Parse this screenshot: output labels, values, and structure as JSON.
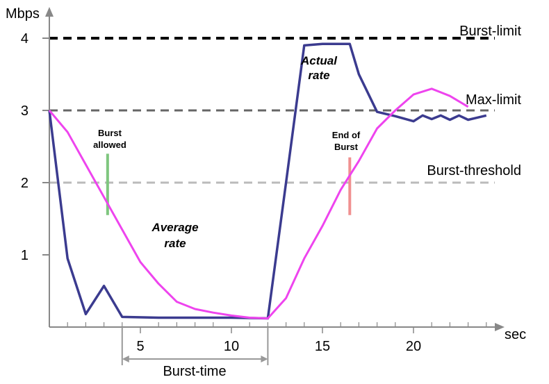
{
  "chart_data": {
    "type": "line",
    "xlabel": "sec",
    "ylabel": "Mbps",
    "xlim": [
      0,
      26
    ],
    "ylim": [
      0,
      4.3
    ],
    "x_ticks": [
      5,
      10,
      15,
      20
    ],
    "y_ticks": [
      1,
      2,
      3,
      4
    ],
    "series": [
      {
        "name": "Actual rate",
        "color": "#3b3b8f",
        "x": [
          0,
          1,
          2,
          3,
          4,
          6,
          8,
          10,
          12,
          13,
          14,
          15,
          16.5,
          17,
          18,
          19,
          20,
          20.5,
          21,
          21.5,
          22,
          22.5,
          23,
          23.5,
          24
        ],
        "y": [
          3,
          0.95,
          0.18,
          0.57,
          0.14,
          0.13,
          0.13,
          0.13,
          0.12,
          2.0,
          3.9,
          3.92,
          3.92,
          3.5,
          2.98,
          2.92,
          2.85,
          2.93,
          2.88,
          2.93,
          2.87,
          2.93,
          2.87,
          2.9,
          2.93
        ]
      },
      {
        "name": "Average rate",
        "color": "#ee44ee",
        "x": [
          0,
          1,
          2,
          3,
          4,
          5,
          6,
          7,
          8,
          9,
          10,
          11,
          12,
          13,
          14,
          15,
          16,
          17,
          18,
          19,
          20,
          21,
          22,
          23
        ],
        "y": [
          3,
          2.7,
          2.25,
          1.8,
          1.35,
          0.9,
          0.6,
          0.35,
          0.25,
          0.2,
          0.16,
          0.13,
          0.12,
          0.4,
          0.95,
          1.4,
          1.9,
          2.3,
          2.75,
          3.0,
          3.22,
          3.3,
          3.2,
          3.05
        ]
      }
    ],
    "reference_lines": [
      {
        "label": "Burst-limit",
        "y": 4,
        "color": "#000000"
      },
      {
        "label": "Max-limit",
        "y": 3,
        "color": "#666666"
      },
      {
        "label": "Burst-threshold",
        "y": 2,
        "color": "#bbbbbb"
      }
    ],
    "markers": [
      {
        "label_line1": "Burst",
        "label_line2": "allowed",
        "x": 3.2,
        "y_from": 1.55,
        "y_to": 2.4,
        "color": "#7fc67f"
      },
      {
        "label_line1": "End of",
        "label_line2": "Burst",
        "x": 16.5,
        "y_from": 1.55,
        "y_to": 2.35,
        "color": "#f09090"
      }
    ],
    "span": {
      "label": "Burst-time",
      "x_from": 4,
      "x_to": 12
    },
    "annotations": [
      {
        "line1": "Actual",
        "line2": "rate"
      },
      {
        "line1": "Average",
        "line2": "rate"
      }
    ]
  }
}
